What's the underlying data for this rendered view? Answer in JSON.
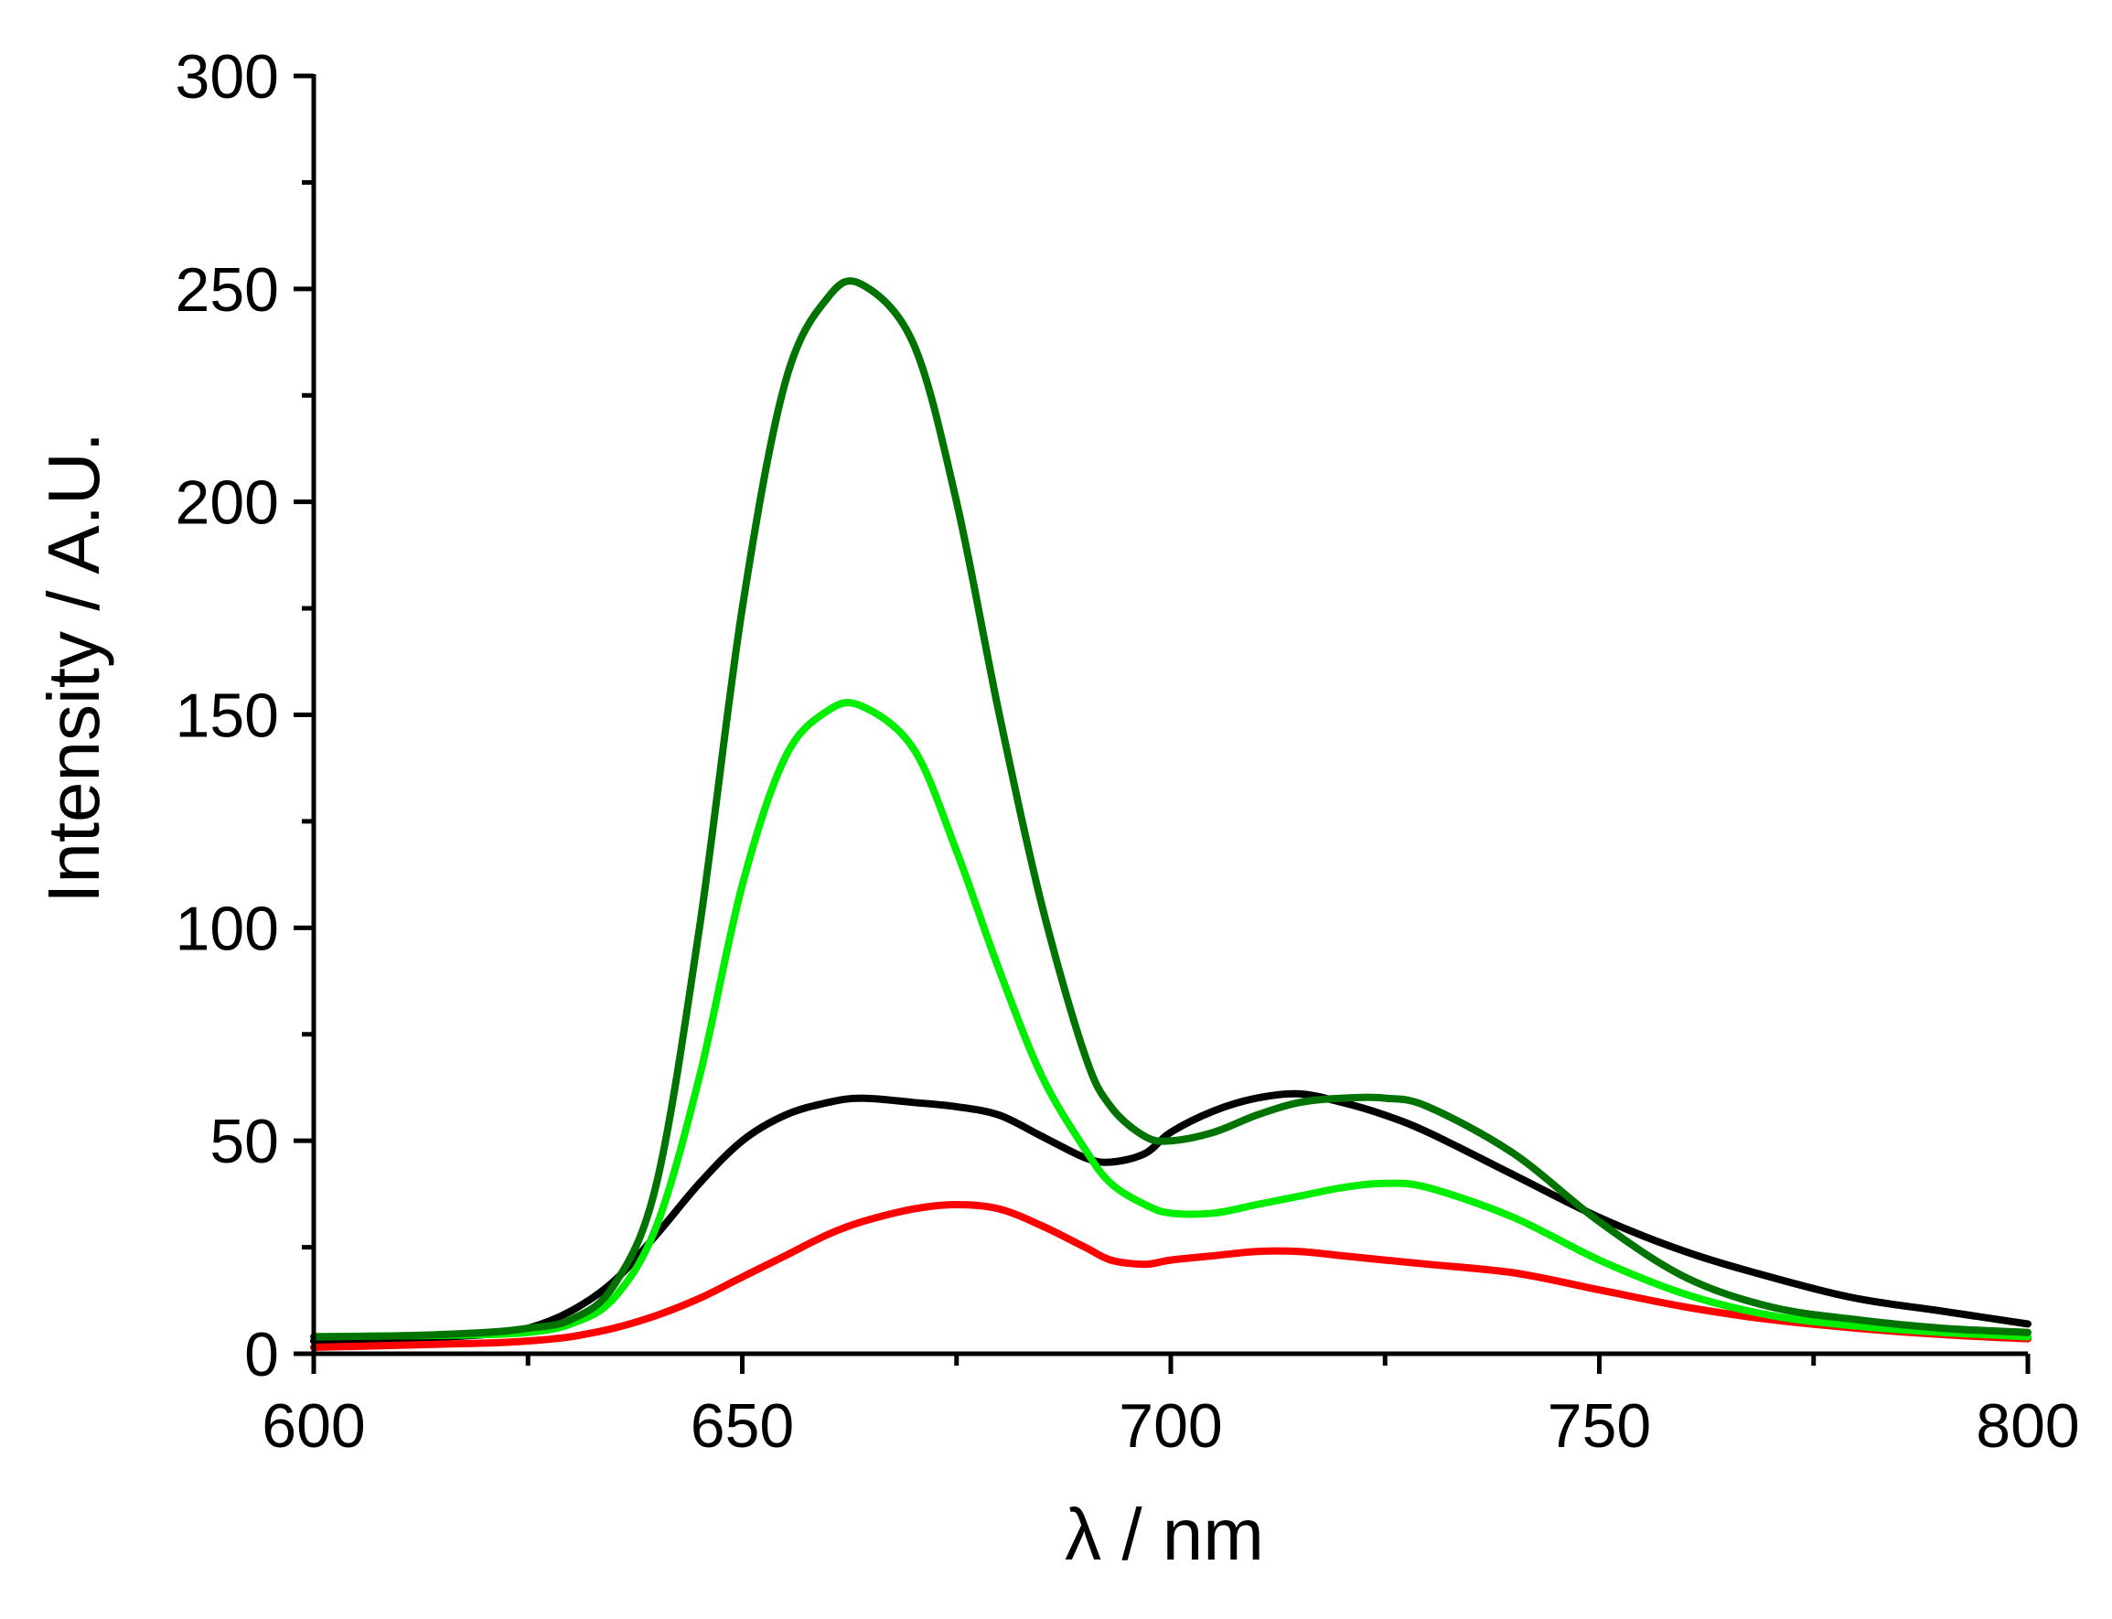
{
  "chart_data": {
    "type": "line",
    "title": "",
    "xlabel": "λ / nm",
    "ylabel": "Intensity / A.U.",
    "xlim": [
      600,
      800
    ],
    "ylim": [
      0,
      300
    ],
    "x_ticks": [
      600,
      650,
      700,
      750,
      800
    ],
    "y_ticks": [
      0,
      50,
      100,
      150,
      200,
      250,
      300
    ],
    "grid": false,
    "legend": "none",
    "x": [
      600,
      610,
      620,
      625,
      630,
      635,
      640,
      645,
      650,
      655,
      660,
      664,
      670,
      675,
      680,
      685,
      690,
      693,
      697,
      700,
      705,
      710,
      715,
      720,
      725,
      730,
      740,
      750,
      760,
      770,
      780,
      790,
      800
    ],
    "series": [
      {
        "color": "#000000",
        "values": [
          3,
          3.5,
          4.5,
          6,
          10,
          17,
          28,
          40,
          50,
          56,
          59,
          60,
          59,
          58,
          56,
          51,
          46,
          45,
          47,
          52,
          57,
          60,
          61,
          59,
          56,
          52,
          42,
          32,
          24,
          18,
          13,
          10,
          7
        ]
      },
      {
        "color": "#ff0000",
        "values": [
          1.5,
          2,
          2.5,
          3,
          4,
          6,
          9,
          13,
          18,
          23,
          28,
          31,
          34,
          35,
          34,
          30,
          25,
          22,
          21,
          22,
          23,
          24,
          24,
          23,
          22,
          21,
          19,
          15,
          11,
          8,
          6,
          4.5,
          3.5
        ]
      },
      {
        "color": "#00ee00",
        "values": [
          4,
          4.2,
          4.5,
          5,
          7,
          13,
          30,
          65,
          110,
          140,
          151,
          152,
          142,
          118,
          90,
          65,
          48,
          40,
          35,
          33,
          33,
          35,
          37,
          39,
          40,
          39,
          32,
          22,
          14,
          9,
          6.5,
          5,
          4
        ]
      },
      {
        "color": "#007300",
        "values": [
          4,
          4.2,
          5,
          6,
          8,
          16,
          40,
          100,
          175,
          228,
          248,
          251,
          237,
          200,
          150,
          105,
          70,
          58,
          51,
          50,
          52,
          56,
          59,
          60,
          60,
          58,
          47,
          31,
          18,
          11,
          8,
          6,
          5
        ]
      }
    ]
  }
}
